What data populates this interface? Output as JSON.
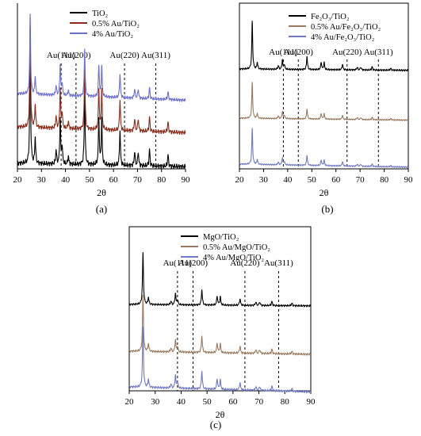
{
  "colors": {
    "black": "#000000",
    "brown": "#8b2a1a",
    "blue": "#6b6fd0",
    "tan": "#9a7a5e",
    "slate": "#6f7ac4"
  },
  "chart_data": [
    {
      "type": "line",
      "panel_label": "(a)",
      "xlabel": "2θ",
      "ylabel": "",
      "xlim": [
        20,
        90
      ],
      "xticks": [
        "20",
        "30",
        "40",
        "50",
        "60",
        "70",
        "80",
        "90"
      ],
      "grid": false,
      "legend_position": "top-right",
      "reference_lines": [
        {
          "label": "Au(111)",
          "x": 38.2
        },
        {
          "label": "Au(200)",
          "x": 44.4
        },
        {
          "label": "Au(220)",
          "x": 64.6
        },
        {
          "label": "Au(311)",
          "x": 77.6
        }
      ],
      "peaks": [
        {
          "x": 25.3,
          "h": 1.0
        },
        {
          "x": 27.4,
          "h": 0.22
        },
        {
          "x": 36.1,
          "h": 0.12
        },
        {
          "x": 37.8,
          "h": 0.38
        },
        {
          "x": 38.6,
          "h": 0.15
        },
        {
          "x": 41.2,
          "h": 0.07
        },
        {
          "x": 48.0,
          "h": 0.6
        },
        {
          "x": 53.9,
          "h": 0.4
        },
        {
          "x": 55.1,
          "h": 0.38
        },
        {
          "x": 62.7,
          "h": 0.3
        },
        {
          "x": 68.8,
          "h": 0.12
        },
        {
          "x": 70.3,
          "h": 0.12
        },
        {
          "x": 75.0,
          "h": 0.14
        },
        {
          "x": 82.7,
          "h": 0.1
        }
      ],
      "series": [
        {
          "name": "TiO₂",
          "color": "#000000",
          "offset": 0
        },
        {
          "name": "0.5% Au/TiO₂",
          "color": "#8b2a1a",
          "offset": 1
        },
        {
          "name": "4% Au/TiO₂",
          "color": "#6b6fd0",
          "offset": 2
        }
      ]
    },
    {
      "type": "line",
      "panel_label": "(b)",
      "xlabel": "2θ",
      "ylabel": "",
      "xlim": [
        20,
        90
      ],
      "xticks": [
        "20",
        "30",
        "40",
        "50",
        "60",
        "70",
        "80",
        "90"
      ],
      "grid": false,
      "legend_position": "top-right",
      "reference_lines": [
        {
          "label": "Au(111)",
          "x": 38.2
        },
        {
          "label": "Au(200)",
          "x": 44.4
        },
        {
          "label": "Au(220)",
          "x": 64.6
        },
        {
          "label": "Au(311)",
          "x": 77.6
        }
      ],
      "peaks": [
        {
          "x": 25.3,
          "h": 1.0
        },
        {
          "x": 27.4,
          "h": 0.14
        },
        {
          "x": 36.1,
          "h": 0.08
        },
        {
          "x": 37.8,
          "h": 0.2
        },
        {
          "x": 38.6,
          "h": 0.1
        },
        {
          "x": 48.0,
          "h": 0.28
        },
        {
          "x": 53.9,
          "h": 0.16
        },
        {
          "x": 55.1,
          "h": 0.15
        },
        {
          "x": 62.7,
          "h": 0.12
        },
        {
          "x": 68.8,
          "h": 0.06
        },
        {
          "x": 70.3,
          "h": 0.06
        },
        {
          "x": 75.0,
          "h": 0.07
        },
        {
          "x": 82.7,
          "h": 0.04
        }
      ],
      "series": [
        {
          "name": "Fe₂O₃/TiO₂",
          "color": "#000000",
          "offset": 2
        },
        {
          "name": "0.5% Au/Fe₂O₃/TiO₂",
          "color": "#9a7a5e",
          "offset": 1
        },
        {
          "name": "4% Au/Fe₂O₃/TiO₂",
          "color": "#6f7ac4",
          "offset": 0
        }
      ]
    },
    {
      "type": "line",
      "panel_label": "(c)",
      "xlabel": "2θ",
      "ylabel": "",
      "xlim": [
        20,
        90
      ],
      "xticks": [
        "20",
        "30",
        "40",
        "50",
        "60",
        "70",
        "80",
        "90"
      ],
      "grid": false,
      "legend_position": "top-right",
      "reference_lines": [
        {
          "label": "Au(111)",
          "x": 38.6
        },
        {
          "label": "Au(200)",
          "x": 44.6
        },
        {
          "label": "Au(220)",
          "x": 64.6
        },
        {
          "label": "Au(311)",
          "x": 77.6
        }
      ],
      "peaks": [
        {
          "x": 25.3,
          "h": 1.0
        },
        {
          "x": 27.4,
          "h": 0.14
        },
        {
          "x": 36.1,
          "h": 0.07
        },
        {
          "x": 37.8,
          "h": 0.22
        },
        {
          "x": 38.6,
          "h": 0.1
        },
        {
          "x": 48.0,
          "h": 0.3
        },
        {
          "x": 53.9,
          "h": 0.18
        },
        {
          "x": 55.1,
          "h": 0.16
        },
        {
          "x": 62.7,
          "h": 0.13
        },
        {
          "x": 68.8,
          "h": 0.07
        },
        {
          "x": 70.3,
          "h": 0.07
        },
        {
          "x": 75.0,
          "h": 0.08
        },
        {
          "x": 82.7,
          "h": 0.05
        }
      ],
      "series": [
        {
          "name": "MgO/TiO₂",
          "color": "#000000",
          "offset": 2
        },
        {
          "name": "0.5% Au/MgO/TiO₂",
          "color": "#9a7a5e",
          "offset": 1
        },
        {
          "name": "4% Au/MgO/TiO₂",
          "color": "#6f7ac4",
          "offset": 0
        }
      ]
    }
  ]
}
